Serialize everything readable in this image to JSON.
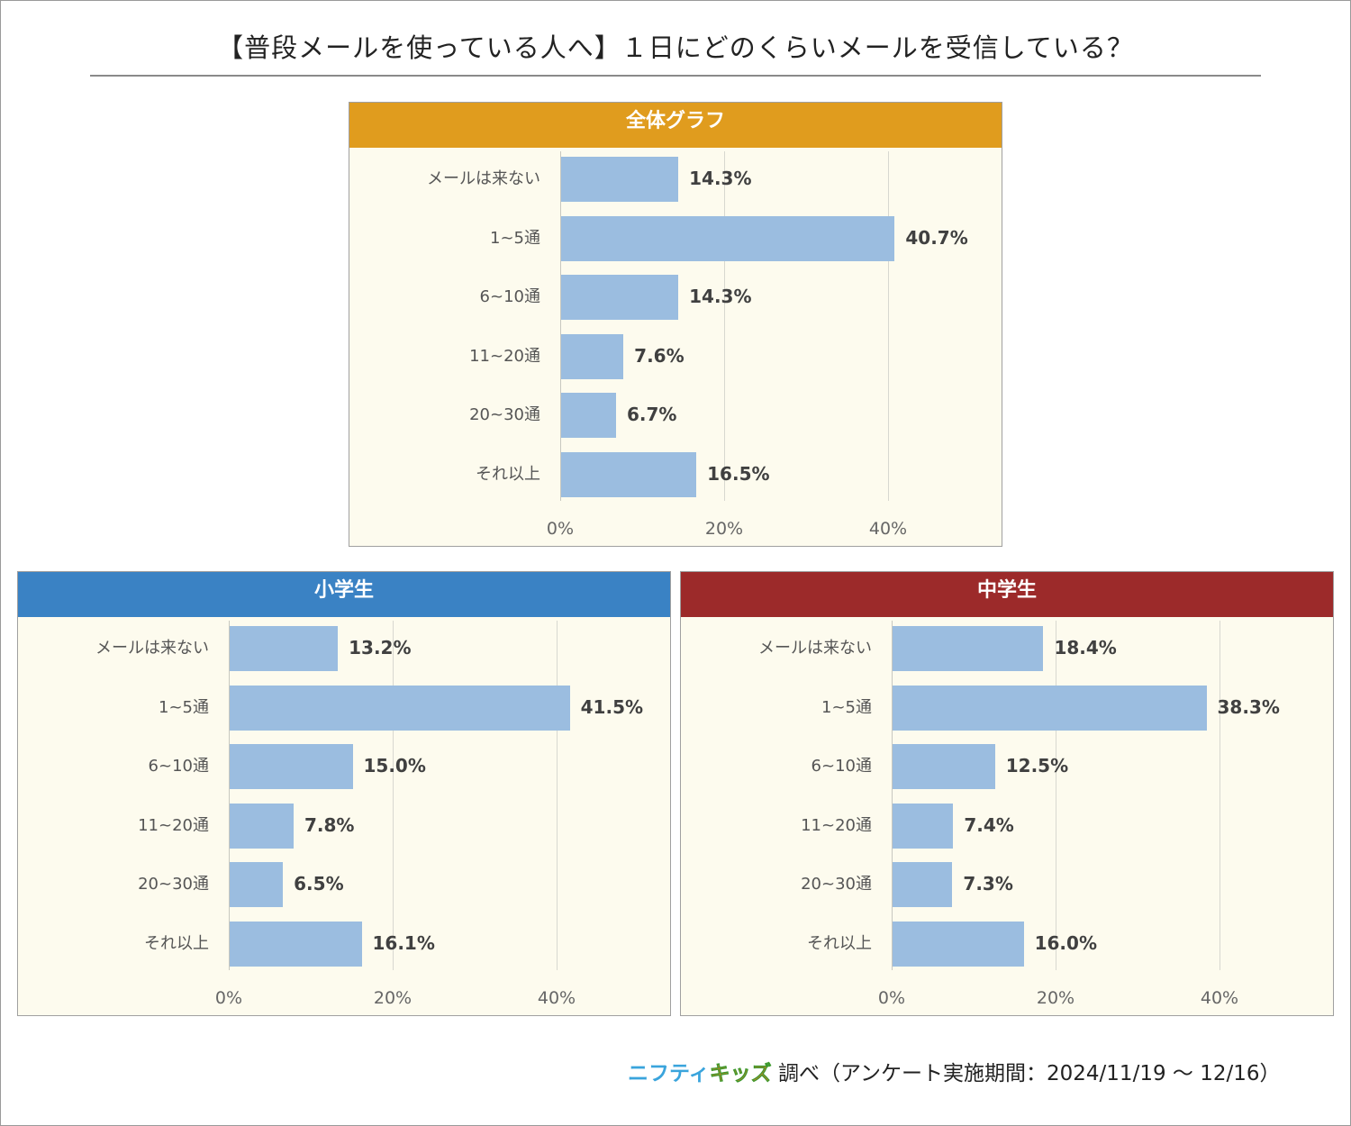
{
  "title": "【普段メールを使っている人へ】１日にどのくらいメールを受信している？",
  "colors": {
    "bar": "#9bbde0",
    "overall": "#e09c1e",
    "elementary": "#3a82c4",
    "junior_high": "#9c2a2a",
    "panel_bg": "#fdfbee"
  },
  "chart_data": [
    {
      "type": "bar",
      "orientation": "horizontal",
      "title": "全体グラフ",
      "header_color": "#e09c1e",
      "categories": [
        "メールは来ない",
        "1~5通",
        "6~10通",
        "11~20通",
        "20~30通",
        "それ以上"
      ],
      "values": [
        14.3,
        40.7,
        14.3,
        7.6,
        6.7,
        16.5
      ],
      "value_labels": [
        "14.3%",
        "40.7%",
        "14.3%",
        "7.6%",
        "6.7%",
        "16.5%"
      ],
      "xlim": [
        0,
        40
      ],
      "ticks": [
        "0%",
        "20%",
        "40%"
      ],
      "tick_values": [
        0,
        20,
        40
      ],
      "grid": true
    },
    {
      "type": "bar",
      "orientation": "horizontal",
      "title": "小学生",
      "header_color": "#3a82c4",
      "categories": [
        "メールは来ない",
        "1~5通",
        "6~10通",
        "11~20通",
        "20~30通",
        "それ以上"
      ],
      "values": [
        13.2,
        41.5,
        15.0,
        7.8,
        6.5,
        16.1
      ],
      "value_labels": [
        "13.2%",
        "41.5%",
        "15.0%",
        "7.8%",
        "6.5%",
        "16.1%"
      ],
      "xlim": [
        0,
        40
      ],
      "ticks": [
        "0%",
        "20%",
        "40%"
      ],
      "tick_values": [
        0,
        20,
        40
      ],
      "grid": true
    },
    {
      "type": "bar",
      "orientation": "horizontal",
      "title": "中学生",
      "header_color": "#9c2a2a",
      "categories": [
        "メールは来ない",
        "1~5通",
        "6~10通",
        "11~20通",
        "20~30通",
        "それ以上"
      ],
      "values": [
        18.4,
        38.3,
        12.5,
        7.4,
        7.3,
        16.0
      ],
      "value_labels": [
        "18.4%",
        "38.3%",
        "12.5%",
        "7.4%",
        "7.3%",
        "16.0%"
      ],
      "xlim": [
        0,
        40
      ],
      "ticks": [
        "0%",
        "20%",
        "40%"
      ],
      "tick_values": [
        0,
        20,
        40
      ],
      "grid": true
    }
  ],
  "footer": {
    "logo_part1": "ニフティ",
    "logo_part2": "キッズ",
    "text": "調べ（アンケート実施期間：2024/11/19 ～ 12/16）"
  }
}
